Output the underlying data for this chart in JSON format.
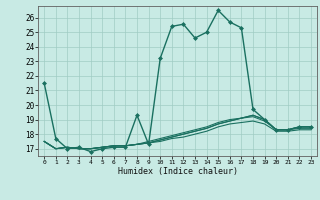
{
  "xlabel": "Humidex (Indice chaleur)",
  "bg_color": "#c8eae4",
  "grid_color": "#a0ccc4",
  "line_color": "#1a7060",
  "xlim": [
    -0.5,
    23.5
  ],
  "ylim": [
    16.5,
    26.8
  ],
  "xticks": [
    0,
    1,
    2,
    3,
    4,
    5,
    6,
    7,
    8,
    9,
    10,
    11,
    12,
    13,
    14,
    15,
    16,
    17,
    18,
    19,
    20,
    21,
    22,
    23
  ],
  "yticks": [
    17,
    18,
    19,
    20,
    21,
    22,
    23,
    24,
    25,
    26
  ],
  "series": [
    [
      21.5,
      17.7,
      17.0,
      17.1,
      16.8,
      17.0,
      17.1,
      17.1,
      19.3,
      17.3,
      23.2,
      25.4,
      25.55,
      24.6,
      25.0,
      26.5,
      25.7,
      25.3,
      19.7,
      19.0,
      18.3,
      18.3,
      18.5,
      18.5
    ],
    [
      17.5,
      17.0,
      17.1,
      17.0,
      17.0,
      17.1,
      17.2,
      17.2,
      17.3,
      17.4,
      17.6,
      17.8,
      18.0,
      18.2,
      18.4,
      18.7,
      18.9,
      19.1,
      19.3,
      19.0,
      18.3,
      18.3,
      18.5,
      18.5
    ],
    [
      17.5,
      17.0,
      17.1,
      17.0,
      17.0,
      17.1,
      17.2,
      17.2,
      17.3,
      17.4,
      17.6,
      17.8,
      18.0,
      18.2,
      18.4,
      18.7,
      18.9,
      19.1,
      19.3,
      19.0,
      18.3,
      18.3,
      18.5,
      18.5
    ],
    [
      17.5,
      17.0,
      17.1,
      17.0,
      17.0,
      17.1,
      17.2,
      17.2,
      17.3,
      17.5,
      17.7,
      17.9,
      18.1,
      18.3,
      18.5,
      18.8,
      19.0,
      19.1,
      19.2,
      18.9,
      18.3,
      18.3,
      18.4,
      18.4
    ],
    [
      17.5,
      17.0,
      17.1,
      17.0,
      17.0,
      17.1,
      17.2,
      17.2,
      17.3,
      17.4,
      17.5,
      17.7,
      17.8,
      18.0,
      18.2,
      18.5,
      18.7,
      18.8,
      18.9,
      18.7,
      18.2,
      18.2,
      18.3,
      18.3
    ]
  ]
}
